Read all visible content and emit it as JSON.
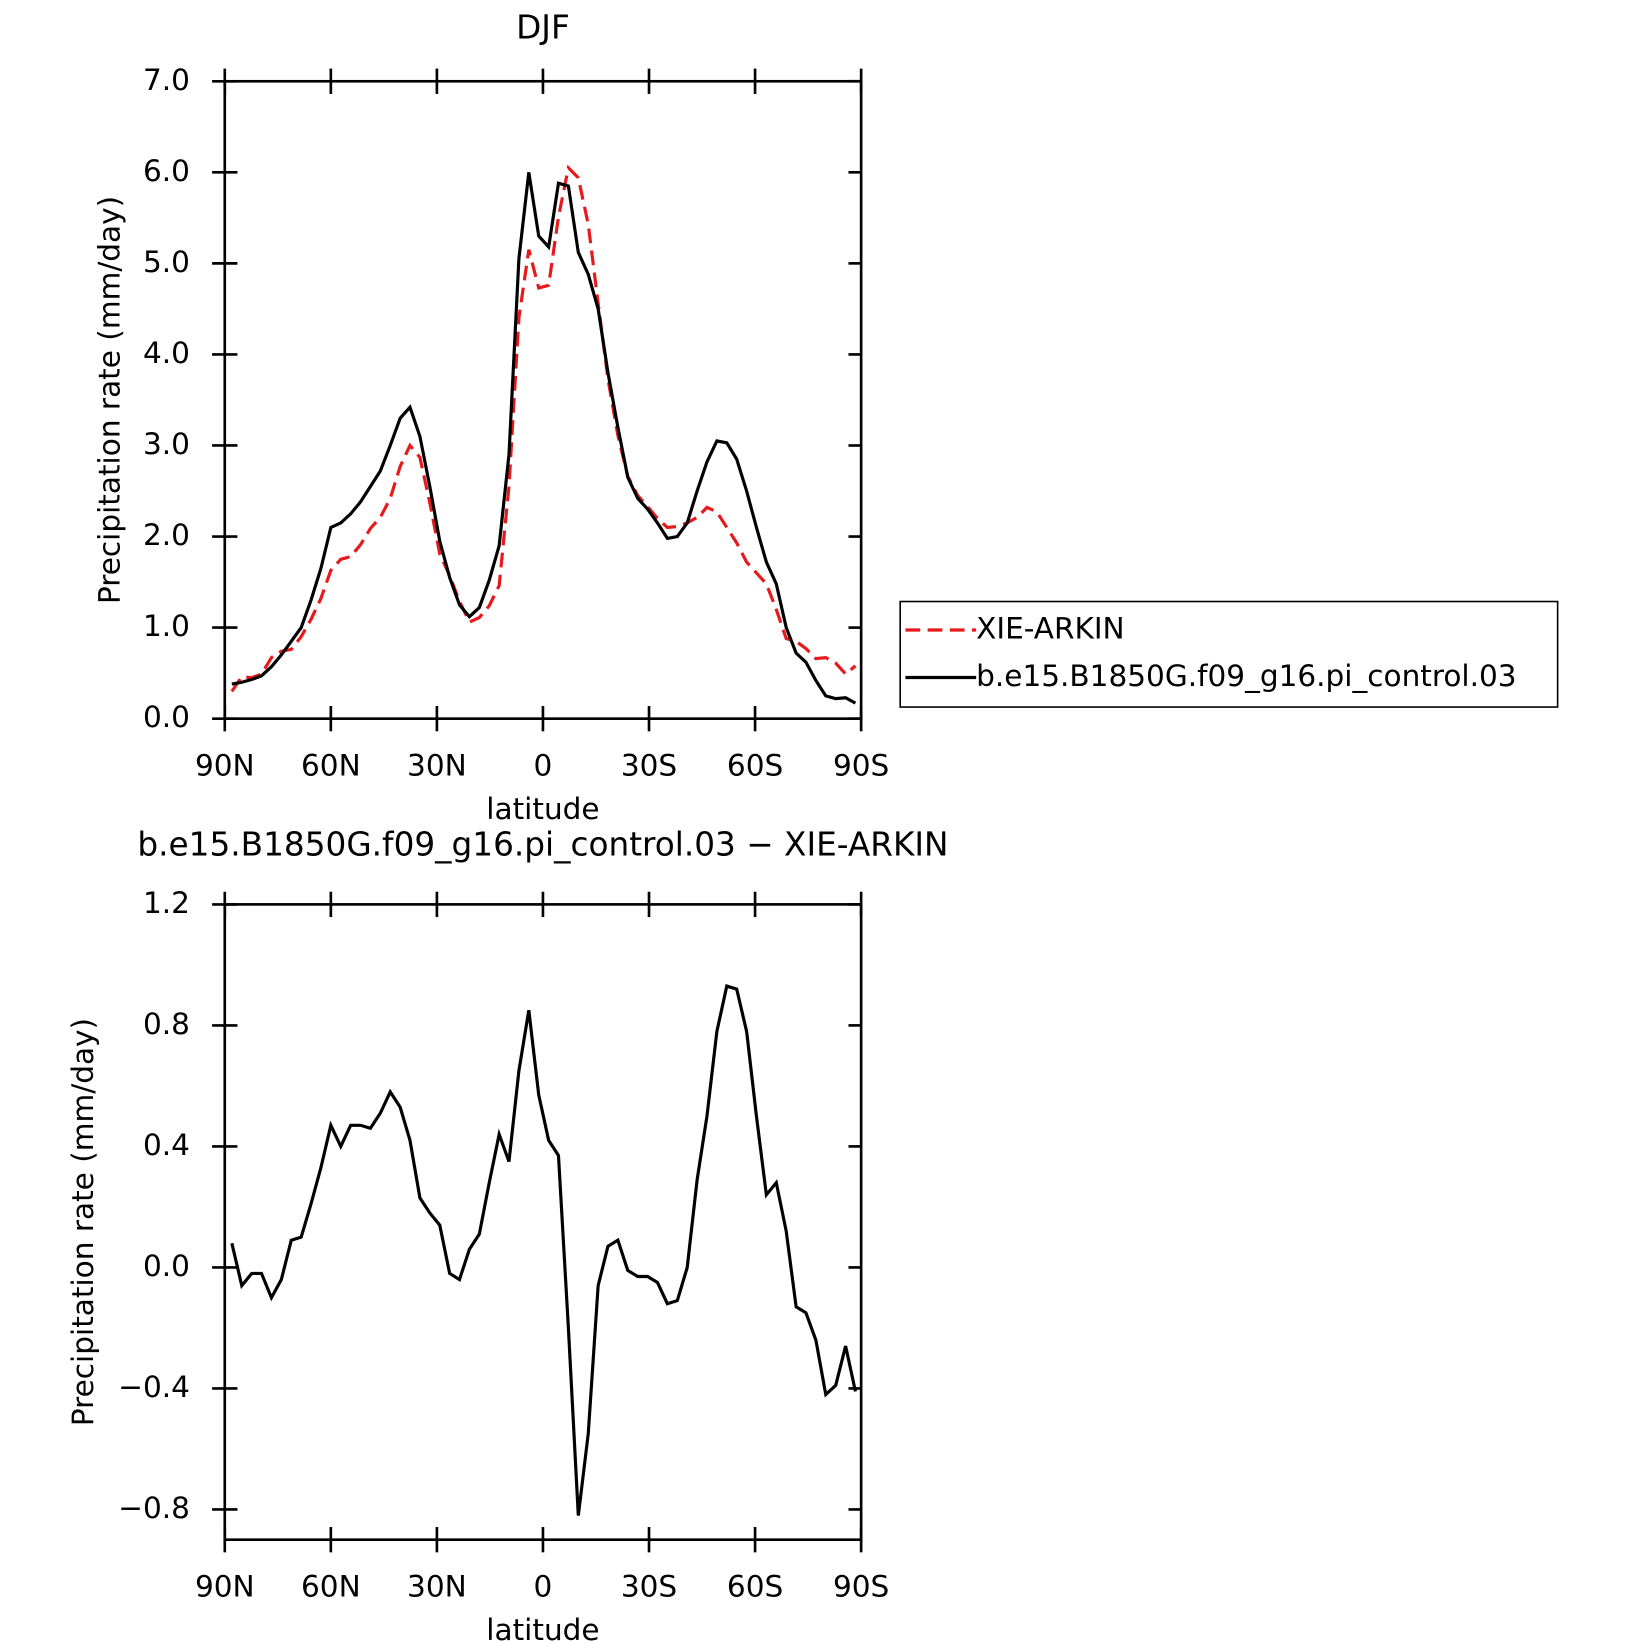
{
  "chart_data": [
    {
      "type": "line",
      "title": "DJF",
      "xlabel": "latitude",
      "ylabel": "Precipitation rate (mm/day)",
      "x": [
        88,
        85.2,
        82.4,
        79.6,
        76.8,
        74,
        71.2,
        68.4,
        65.6,
        62.8,
        60,
        57.2,
        54.4,
        51.6,
        48.8,
        46,
        43.2,
        40.4,
        37.6,
        34.8,
        32,
        29.2,
        26.4,
        23.6,
        20.8,
        18,
        15.2,
        12.4,
        9.6,
        6.8,
        4,
        1.2,
        -1.6,
        -4.4,
        -7.2,
        -10,
        -12.8,
        -15.6,
        -18.4,
        -21.2,
        -24,
        -26.8,
        -29.6,
        -32.4,
        -35.2,
        -38,
        -40.8,
        -43.6,
        -46.4,
        -49.2,
        -52,
        -54.8,
        -57.6,
        -60.4,
        -63.2,
        -66,
        -68.8,
        -71.6,
        -74.4,
        -77.2,
        -80,
        -82.8,
        -85.6,
        -88.4
      ],
      "series": [
        {
          "name": "XIE-ARKIN",
          "color": "#e8191b",
          "style": "dashed",
          "values": [
            0.3,
            0.46,
            0.45,
            0.49,
            0.67,
            0.74,
            0.76,
            0.9,
            1.09,
            1.32,
            1.63,
            1.75,
            1.78,
            1.91,
            2.09,
            2.21,
            2.42,
            2.77,
            3.0,
            2.87,
            2.37,
            1.81,
            1.57,
            1.29,
            1.06,
            1.11,
            1.24,
            1.46,
            2.55,
            4.4,
            5.15,
            4.73,
            4.76,
            5.51,
            6.05,
            5.94,
            5.43,
            4.56,
            3.73,
            3.11,
            2.66,
            2.45,
            2.33,
            2.2,
            2.1,
            2.11,
            2.15,
            2.21,
            2.32,
            2.27,
            2.1,
            1.93,
            1.72,
            1.6,
            1.48,
            1.2,
            0.88,
            0.85,
            0.77,
            0.66,
            0.67,
            0.61,
            0.49,
            0.58
          ]
        },
        {
          "name": "b.e15.B1850G.f09_g16.pi_control.03",
          "color": "#000000",
          "style": "solid",
          "values": [
            0.38,
            0.4,
            0.43,
            0.47,
            0.57,
            0.7,
            0.85,
            1.0,
            1.3,
            1.65,
            2.1,
            2.15,
            2.25,
            2.38,
            2.55,
            2.72,
            3.0,
            3.3,
            3.42,
            3.1,
            2.55,
            1.95,
            1.55,
            1.25,
            1.12,
            1.22,
            1.52,
            1.9,
            2.9,
            5.05,
            6.0,
            5.3,
            5.18,
            5.88,
            5.85,
            5.12,
            4.88,
            4.5,
            3.8,
            3.2,
            2.65,
            2.42,
            2.3,
            2.15,
            1.98,
            2.0,
            2.15,
            2.5,
            2.82,
            3.05,
            3.03,
            2.85,
            2.5,
            2.1,
            1.72,
            1.48,
            1.0,
            0.72,
            0.62,
            0.42,
            0.25,
            0.22,
            0.23,
            0.17
          ]
        }
      ],
      "xlim": [
        90,
        -90
      ],
      "xticks": [
        {
          "value": 90,
          "label": "90N"
        },
        {
          "value": 60,
          "label": "60N"
        },
        {
          "value": 30,
          "label": "30N"
        },
        0,
        {
          "value": -30,
          "label": "30S"
        },
        {
          "value": -60,
          "label": "60S"
        },
        {
          "value": -90,
          "label": "90S"
        }
      ],
      "ylim": [
        0,
        7
      ],
      "yticks": [
        {
          "value": 0,
          "label": "0.0"
        },
        {
          "value": 1,
          "label": "1.0"
        },
        {
          "value": 2,
          "label": "2.0"
        },
        {
          "value": 3,
          "label": "3.0"
        },
        {
          "value": 4,
          "label": "4.0"
        },
        {
          "value": 5,
          "label": "5.0"
        },
        {
          "value": 6,
          "label": "6.0"
        },
        {
          "value": 7,
          "label": "7.0"
        }
      ],
      "legend": "right"
    },
    {
      "type": "line",
      "title": "b.e15.B1850G.f09_g16.pi_control.03 − XIE-ARKIN",
      "xlabel": "latitude",
      "ylabel": "Precipitation rate (mm/day)",
      "x": [
        88,
        85.2,
        82.4,
        79.6,
        76.8,
        74,
        71.2,
        68.4,
        65.6,
        62.8,
        60,
        57.2,
        54.4,
        51.6,
        48.8,
        46,
        43.2,
        40.4,
        37.6,
        34.8,
        32,
        29.2,
        26.4,
        23.6,
        20.8,
        18,
        15.2,
        12.4,
        9.6,
        6.8,
        4,
        1.2,
        -1.6,
        -4.4,
        -7.2,
        -10,
        -12.8,
        -15.6,
        -18.4,
        -21.2,
        -24,
        -26.8,
        -29.6,
        -32.4,
        -35.2,
        -38,
        -40.8,
        -43.6,
        -46.4,
        -49.2,
        -52,
        -54.8,
        -57.6,
        -60.4,
        -63.2,
        -66,
        -68.8,
        -71.6,
        -74.4,
        -77.2,
        -80,
        -82.8,
        -85.6,
        -88.4
      ],
      "values": [
        0.08,
        -0.06,
        -0.02,
        -0.02,
        -0.1,
        -0.04,
        0.09,
        0.1,
        0.21,
        0.33,
        0.47,
        0.4,
        0.47,
        0.47,
        0.46,
        0.51,
        0.58,
        0.53,
        0.42,
        0.23,
        0.18,
        0.14,
        -0.02,
        -0.04,
        0.06,
        0.11,
        0.28,
        0.44,
        0.35,
        0.65,
        0.85,
        0.57,
        0.42,
        0.37,
        -0.2,
        -0.82,
        -0.55,
        -0.06,
        0.07,
        0.09,
        -0.01,
        -0.03,
        -0.03,
        -0.05,
        -0.12,
        -0.11,
        0.0,
        0.29,
        0.5,
        0.78,
        0.93,
        0.92,
        0.78,
        0.5,
        0.24,
        0.28,
        0.12,
        -0.13,
        -0.15,
        -0.24,
        -0.42,
        -0.39,
        -0.26,
        -0.41
      ],
      "color": "#000000",
      "xlim": [
        90,
        -90
      ],
      "xticks": [
        {
          "value": 90,
          "label": "90N"
        },
        {
          "value": 60,
          "label": "60N"
        },
        {
          "value": 30,
          "label": "30N"
        },
        0,
        {
          "value": -30,
          "label": "30S"
        },
        {
          "value": -60,
          "label": "60S"
        },
        {
          "value": -90,
          "label": "90S"
        }
      ],
      "ylim": [
        -0.9,
        1.2
      ],
      "yticks": [
        1.2,
        0.8,
        0.4,
        {
          "value": 0,
          "label": "0.0"
        },
        {
          "value": -0.4,
          "label": "−0.4"
        },
        {
          "value": -0.8,
          "label": "−0.8"
        }
      ]
    }
  ]
}
